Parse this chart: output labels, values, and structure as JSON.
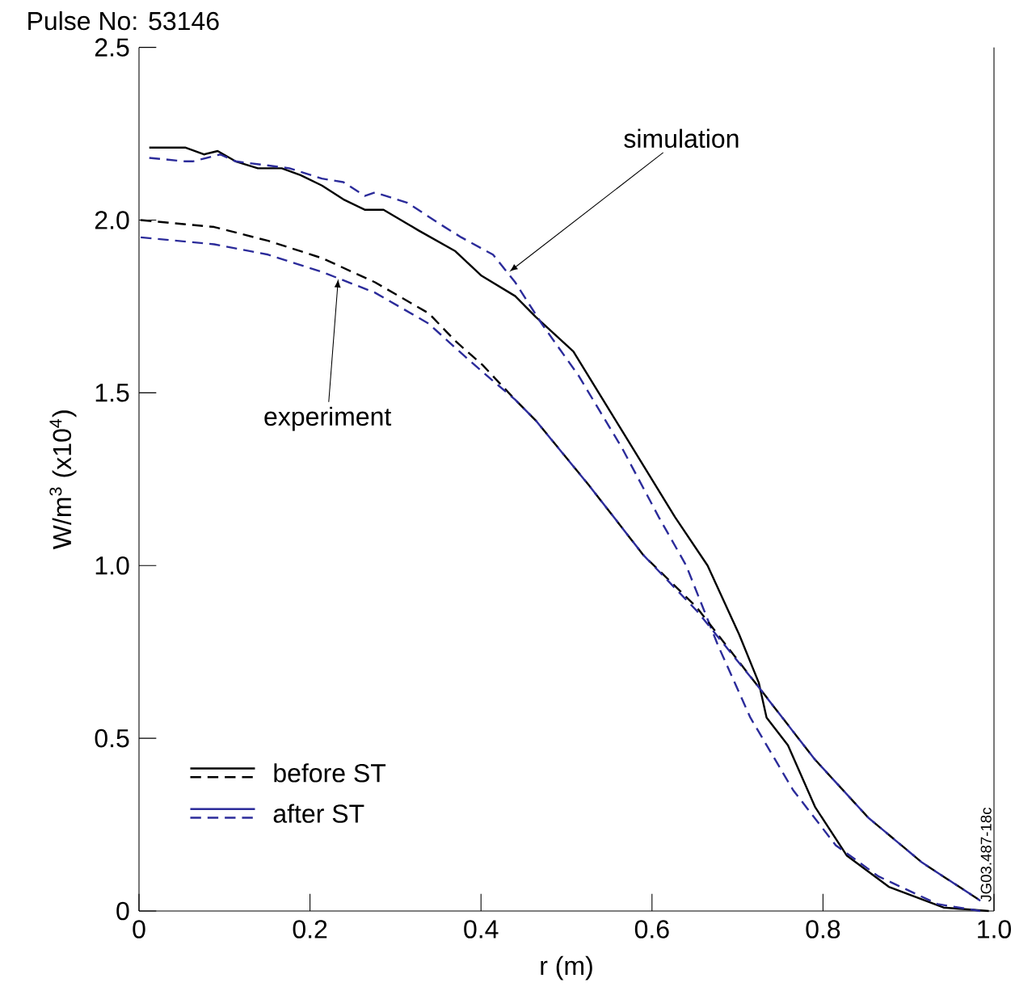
{
  "chart_data": {
    "type": "line",
    "title": "Pulse No: 53146",
    "xlabel": "r (m)",
    "ylabel": "W/m$^{3}$ (x10$^{4}$)",
    "xlim": [
      0,
      1
    ],
    "ylim": [
      0,
      2.5
    ],
    "xticks": [
      0,
      0.2,
      0.4,
      0.6,
      0.8,
      {
        "value": 1,
        "label": "1.0"
      }
    ],
    "yticks": [
      0,
      0.5,
      {
        "value": 1,
        "label": "1.0"
      },
      1.5,
      {
        "value": 2,
        "label": "2.0"
      },
      2.5
    ],
    "legend": "bottom left",
    "grid": false,
    "annotations": [
      {
        "text": "simulation",
        "x": 0.433,
        "y": 1.85
      },
      {
        "text": "experiment",
        "x": 0.233,
        "y": 1.83
      },
      "JG03.487-18c"
    ],
    "series": [
      {
        "name": "before ST",
        "color": "#000000",
        "line_style": "solid",
        "x": [
          0.012,
          0.054,
          0.076,
          0.092,
          0.113,
          0.139,
          0.167,
          0.189,
          0.214,
          0.239,
          0.264,
          0.286,
          0.327,
          0.37,
          0.4,
          0.44,
          0.464,
          0.508,
          0.565,
          0.627,
          0.665,
          0.702,
          0.725,
          0.734,
          0.759,
          0.791,
          0.828,
          0.877,
          0.941,
          0.994
        ],
        "values": [
          2.21,
          2.21,
          2.19,
          2.2,
          2.17,
          2.15,
          2.15,
          2.13,
          2.1,
          2.06,
          2.03,
          2.03,
          1.97,
          1.91,
          1.84,
          1.78,
          1.72,
          1.62,
          1.39,
          1.14,
          1.0,
          0.8,
          0.66,
          0.56,
          0.48,
          0.3,
          0.16,
          0.07,
          0.01,
          0.0
        ]
      },
      {
        "name": "after ST",
        "color": "#2b2b9a",
        "line_style": "dashed",
        "x": [
          0.012,
          0.054,
          0.063,
          0.095,
          0.113,
          0.176,
          0.214,
          0.239,
          0.264,
          0.276,
          0.314,
          0.351,
          0.377,
          0.414,
          0.44,
          0.471,
          0.514,
          0.565,
          0.608,
          0.64,
          0.677,
          0.715,
          0.765,
          0.815,
          0.865,
          0.934,
          0.984
        ],
        "values": [
          2.18,
          2.17,
          2.17,
          2.19,
          2.17,
          2.15,
          2.12,
          2.11,
          2.07,
          2.08,
          2.05,
          1.99,
          1.95,
          1.9,
          1.82,
          1.7,
          1.55,
          1.34,
          1.14,
          1.0,
          0.77,
          0.56,
          0.35,
          0.19,
          0.1,
          0.02,
          0.0
        ]
      },
      {
        "color": "#000000",
        "line_style": "dashed",
        "x": [
          0.002,
          0.088,
          0.151,
          0.214,
          0.276,
          0.339,
          0.37,
          0.402,
          0.44,
          0.464,
          0.527,
          0.59,
          0.652,
          0.721,
          0.79,
          0.853,
          0.916,
          0.984
        ],
        "values": [
          2.0,
          1.98,
          1.94,
          1.89,
          1.82,
          1.73,
          1.65,
          1.58,
          1.48,
          1.42,
          1.23,
          1.03,
          0.88,
          0.66,
          0.44,
          0.27,
          0.14,
          0.03
        ]
      },
      {
        "color": "#2b2b9a",
        "line_style": "dashed",
        "x": [
          0.002,
          0.088,
          0.151,
          0.214,
          0.276,
          0.339,
          0.37,
          0.402,
          0.44,
          0.464,
          0.527,
          0.59,
          0.652,
          0.721,
          0.79,
          0.853,
          0.916,
          0.984
        ],
        "values": [
          1.95,
          1.93,
          1.9,
          1.85,
          1.79,
          1.7,
          1.63,
          1.56,
          1.48,
          1.42,
          1.23,
          1.03,
          0.87,
          0.66,
          0.44,
          0.27,
          0.14,
          0.03
        ]
      }
    ]
  }
}
